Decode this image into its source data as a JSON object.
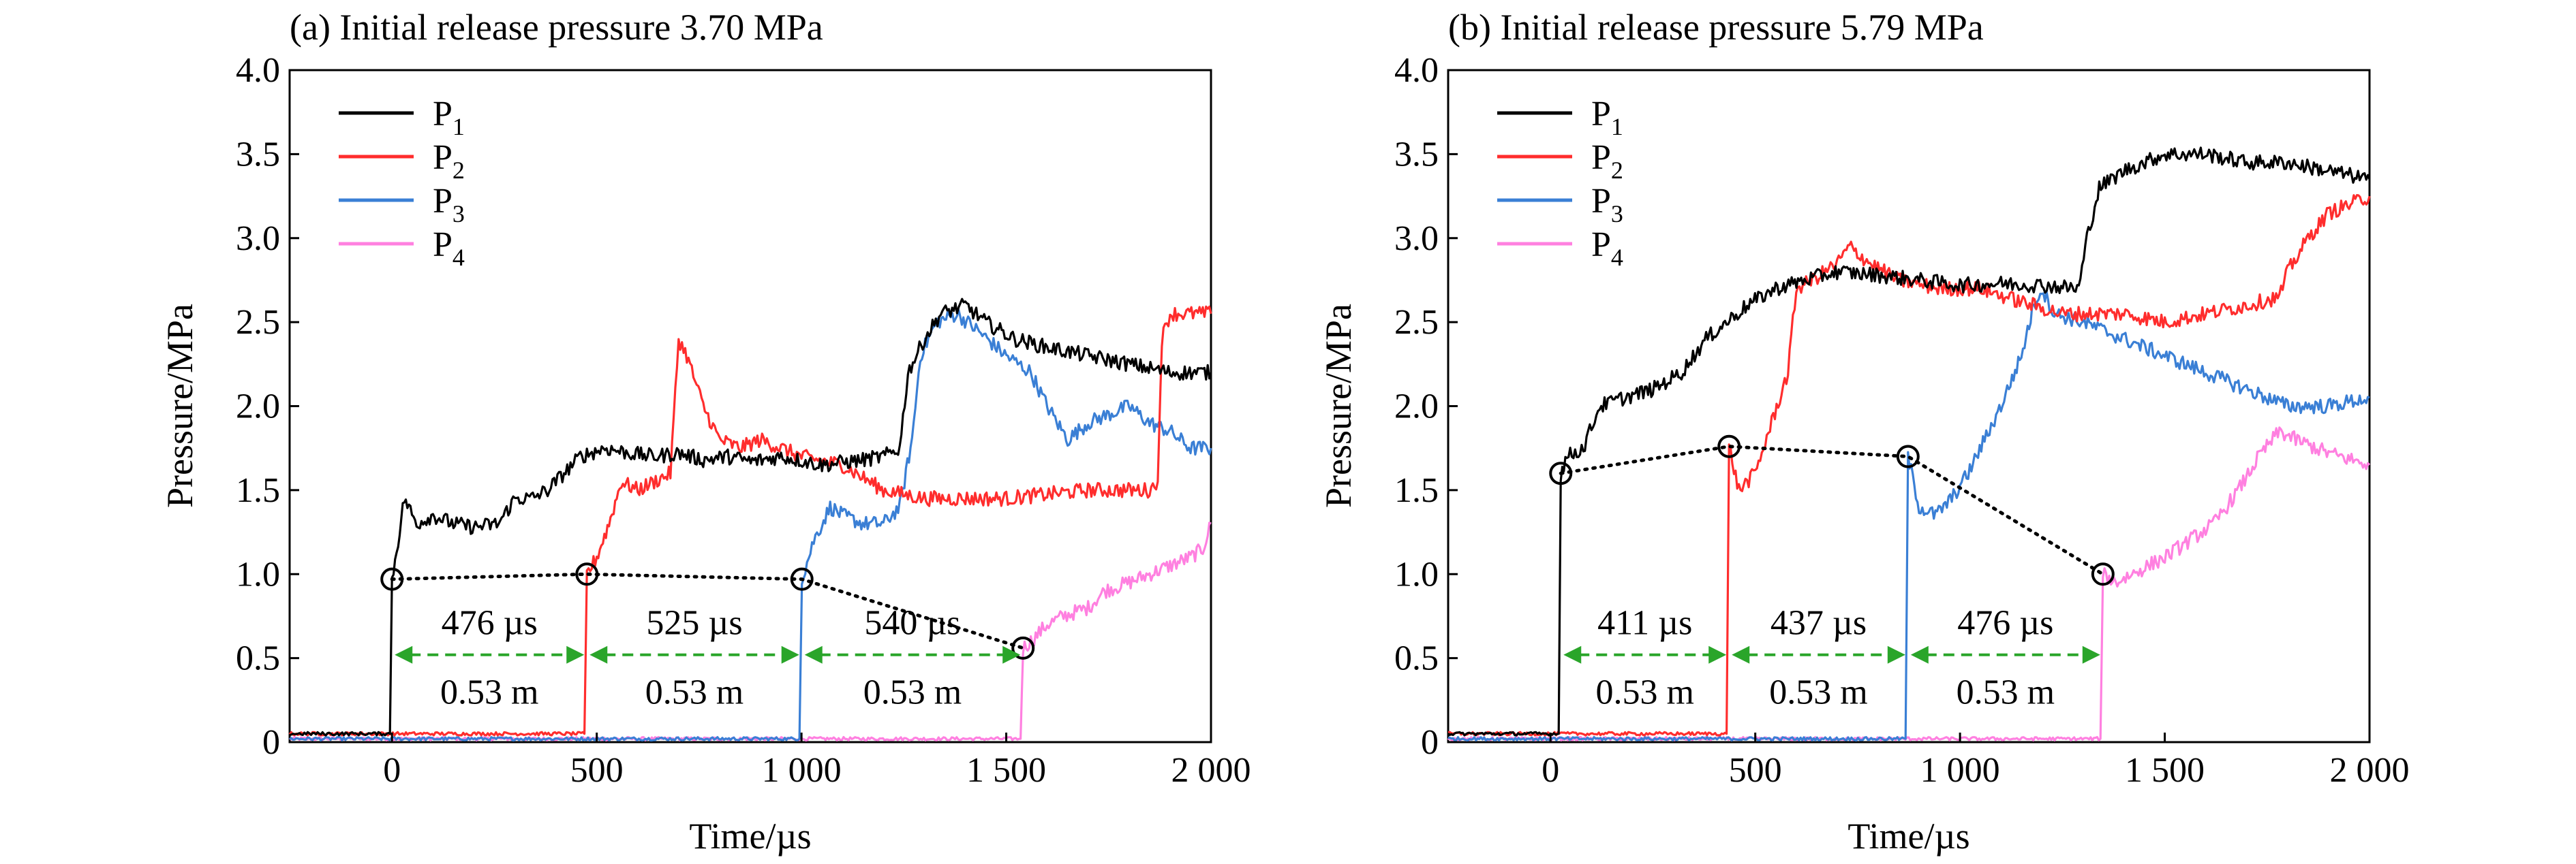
{
  "chart_data": [
    {
      "type": "line",
      "title": "(a) Initial release pressure 3.70 MPa",
      "xlabel": "Time/µs",
      "ylabel": "Pressure/MPa",
      "xlim": [
        -250,
        2000
      ],
      "ylim": [
        0,
        4.0
      ],
      "xticks": [
        0,
        500,
        1000,
        1500,
        2000
      ],
      "xtick_labels": [
        "0",
        "500",
        "1 000",
        "1 500",
        "2 000"
      ],
      "yticks": [
        0,
        0.5,
        1.0,
        1.5,
        2.0,
        2.5,
        3.0,
        3.5,
        4.0
      ],
      "ytick_labels": [
        "0",
        "0.5",
        "1.0",
        "1.5",
        "2.0",
        "2.5",
        "3.0",
        "3.5",
        "4.0"
      ],
      "grid": false,
      "legend_position": "top-left",
      "series": [
        {
          "name": "P",
          "sub": "1",
          "color": "#000000",
          "points": [
            [
              -250,
              0.05
            ],
            [
              -5,
              0.05
            ],
            [
              0,
              0.97
            ],
            [
              15,
              1.2
            ],
            [
              30,
              1.45
            ],
            [
              60,
              1.3
            ],
            [
              100,
              1.35
            ],
            [
              150,
              1.3
            ],
            [
              200,
              1.28
            ],
            [
              260,
              1.3
            ],
            [
              300,
              1.45
            ],
            [
              340,
              1.45
            ],
            [
              380,
              1.5
            ],
            [
              420,
              1.6
            ],
            [
              460,
              1.7
            ],
            [
              520,
              1.75
            ],
            [
              580,
              1.72
            ],
            [
              640,
              1.7
            ],
            [
              700,
              1.72
            ],
            [
              760,
              1.68
            ],
            [
              820,
              1.7
            ],
            [
              880,
              1.67
            ],
            [
              950,
              1.7
            ],
            [
              1050,
              1.65
            ],
            [
              1150,
              1.68
            ],
            [
              1200,
              1.7
            ],
            [
              1240,
              1.75
            ],
            [
              1260,
              2.2
            ],
            [
              1300,
              2.4
            ],
            [
              1340,
              2.55
            ],
            [
              1400,
              2.6
            ],
            [
              1450,
              2.5
            ],
            [
              1520,
              2.4
            ],
            [
              1600,
              2.35
            ],
            [
              1700,
              2.3
            ],
            [
              1800,
              2.25
            ],
            [
              1900,
              2.2
            ],
            [
              2000,
              2.2
            ]
          ]
        },
        {
          "name": "P",
          "sub": "2",
          "color": "#ff2d2d",
          "points": [
            [
              -250,
              0.05
            ],
            [
              470,
              0.05
            ],
            [
              476,
              1.0
            ],
            [
              500,
              1.1
            ],
            [
              530,
              1.3
            ],
            [
              560,
              1.55
            ],
            [
              600,
              1.5
            ],
            [
              640,
              1.55
            ],
            [
              680,
              1.6
            ],
            [
              700,
              2.4
            ],
            [
              720,
              2.3
            ],
            [
              760,
              2.0
            ],
            [
              800,
              1.8
            ],
            [
              850,
              1.75
            ],
            [
              900,
              1.8
            ],
            [
              950,
              1.75
            ],
            [
              1000,
              1.7
            ],
            [
              1100,
              1.65
            ],
            [
              1200,
              1.5
            ],
            [
              1300,
              1.45
            ],
            [
              1500,
              1.45
            ],
            [
              1700,
              1.5
            ],
            [
              1850,
              1.5
            ],
            [
              1870,
              1.55
            ],
            [
              1880,
              2.4
            ],
            [
              1900,
              2.55
            ],
            [
              2000,
              2.55
            ]
          ]
        },
        {
          "name": "P",
          "sub": "3",
          "color": "#3a7fd5",
          "points": [
            [
              -250,
              0.02
            ],
            [
              995,
              0.02
            ],
            [
              1001,
              0.97
            ],
            [
              1030,
              1.2
            ],
            [
              1070,
              1.4
            ],
            [
              1100,
              1.35
            ],
            [
              1150,
              1.3
            ],
            [
              1200,
              1.3
            ],
            [
              1240,
              1.4
            ],
            [
              1270,
              1.8
            ],
            [
              1290,
              2.3
            ],
            [
              1330,
              2.5
            ],
            [
              1380,
              2.55
            ],
            [
              1430,
              2.45
            ],
            [
              1500,
              2.3
            ],
            [
              1560,
              2.2
            ],
            [
              1600,
              2.0
            ],
            [
              1650,
              1.8
            ],
            [
              1700,
              1.9
            ],
            [
              1750,
              1.95
            ],
            [
              1800,
              2.0
            ],
            [
              1850,
              1.9
            ],
            [
              1900,
              1.85
            ],
            [
              1950,
              1.75
            ],
            [
              2000,
              1.75
            ]
          ]
        },
        {
          "name": "P",
          "sub": "4",
          "color": "#ff80e0",
          "points": [
            [
              -250,
              0.02
            ],
            [
              1535,
              0.02
            ],
            [
              1541,
              0.56
            ],
            [
              1560,
              0.6
            ],
            [
              1600,
              0.7
            ],
            [
              1640,
              0.75
            ],
            [
              1700,
              0.8
            ],
            [
              1740,
              0.9
            ],
            [
              1800,
              0.95
            ],
            [
              1850,
              1.0
            ],
            [
              1900,
              1.05
            ],
            [
              1950,
              1.1
            ],
            [
              1980,
              1.15
            ],
            [
              2000,
              1.3
            ]
          ]
        }
      ],
      "markers": [
        [
          0,
          0.97
        ],
        [
          476,
          1.0
        ],
        [
          1001,
          0.97
        ],
        [
          1541,
          0.56
        ]
      ],
      "annotations": [
        {
          "x1": 0,
          "x2": 476,
          "time": "476 µs",
          "dist": "0.53 m"
        },
        {
          "x1": 476,
          "x2": 1001,
          "time": "525 µs",
          "dist": "0.53 m"
        },
        {
          "x1": 1001,
          "x2": 1541,
          "time": "540 µs",
          "dist": "0.53 m"
        }
      ]
    },
    {
      "type": "line",
      "title": "(b) Initial release pressure 5.79 MPa",
      "xlabel": "Time/µs",
      "ylabel": "Pressure/MPa",
      "xlim": [
        -250,
        2000
      ],
      "ylim": [
        0,
        4.0
      ],
      "xticks": [
        0,
        500,
        1000,
        1500,
        2000
      ],
      "xtick_labels": [
        "0",
        "500",
        "1 000",
        "1 500",
        "2 000"
      ],
      "yticks": [
        0,
        0.5,
        1.0,
        1.5,
        2.0,
        2.5,
        3.0,
        3.5,
        4.0
      ],
      "ytick_labels": [
        "0",
        "0.5",
        "1.0",
        "1.5",
        "2.0",
        "2.5",
        "3.0",
        "3.5",
        "4.0"
      ],
      "grid": false,
      "legend_position": "top-left",
      "series": [
        {
          "name": "P",
          "sub": "1",
          "color": "#000000",
          "points": [
            [
              -250,
              0.05
            ],
            [
              20,
              0.05
            ],
            [
              25,
              1.6
            ],
            [
              40,
              1.7
            ],
            [
              80,
              1.75
            ],
            [
              120,
              2.0
            ],
            [
              180,
              2.05
            ],
            [
              250,
              2.1
            ],
            [
              320,
              2.2
            ],
            [
              380,
              2.4
            ],
            [
              430,
              2.5
            ],
            [
              480,
              2.6
            ],
            [
              550,
              2.7
            ],
            [
              620,
              2.75
            ],
            [
              700,
              2.8
            ],
            [
              800,
              2.78
            ],
            [
              900,
              2.75
            ],
            [
              1000,
              2.72
            ],
            [
              1100,
              2.73
            ],
            [
              1200,
              2.72
            ],
            [
              1290,
              2.7
            ],
            [
              1310,
              3.0
            ],
            [
              1340,
              3.3
            ],
            [
              1400,
              3.4
            ],
            [
              1500,
              3.5
            ],
            [
              1600,
              3.5
            ],
            [
              1700,
              3.45
            ],
            [
              1800,
              3.45
            ],
            [
              1900,
              3.4
            ],
            [
              2000,
              3.35
            ]
          ]
        },
        {
          "name": "P",
          "sub": "2",
          "color": "#ff2d2d",
          "points": [
            [
              -250,
              0.05
            ],
            [
              430,
              0.05
            ],
            [
              436,
              1.76
            ],
            [
              460,
              1.5
            ],
            [
              500,
              1.6
            ],
            [
              540,
              1.9
            ],
            [
              580,
              2.2
            ],
            [
              600,
              2.7
            ],
            [
              640,
              2.75
            ],
            [
              700,
              2.85
            ],
            [
              730,
              2.95
            ],
            [
              780,
              2.85
            ],
            [
              850,
              2.75
            ],
            [
              950,
              2.7
            ],
            [
              1050,
              2.7
            ],
            [
              1150,
              2.62
            ],
            [
              1250,
              2.55
            ],
            [
              1400,
              2.55
            ],
            [
              1500,
              2.5
            ],
            [
              1600,
              2.55
            ],
            [
              1700,
              2.6
            ],
            [
              1780,
              2.65
            ],
            [
              1800,
              2.8
            ],
            [
              1850,
              3.0
            ],
            [
              1900,
              3.15
            ],
            [
              1950,
              3.2
            ],
            [
              2000,
              3.25
            ]
          ]
        },
        {
          "name": "P",
          "sub": "3",
          "color": "#3a7fd5",
          "points": [
            [
              -250,
              0.02
            ],
            [
              867,
              0.02
            ],
            [
              873,
              1.7
            ],
            [
              900,
              1.4
            ],
            [
              940,
              1.35
            ],
            [
              980,
              1.45
            ],
            [
              1020,
              1.6
            ],
            [
              1060,
              1.8
            ],
            [
              1100,
              2.0
            ],
            [
              1150,
              2.3
            ],
            [
              1180,
              2.6
            ],
            [
              1200,
              2.7
            ],
            [
              1230,
              2.55
            ],
            [
              1300,
              2.5
            ],
            [
              1400,
              2.4
            ],
            [
              1500,
              2.3
            ],
            [
              1600,
              2.2
            ],
            [
              1700,
              2.1
            ],
            [
              1800,
              2.0
            ],
            [
              1900,
              2.0
            ],
            [
              2000,
              2.05
            ]
          ]
        },
        {
          "name": "P",
          "sub": "4",
          "color": "#ff80e0",
          "points": [
            [
              -250,
              0.02
            ],
            [
              1343,
              0.02
            ],
            [
              1349,
              1.0
            ],
            [
              1380,
              0.95
            ],
            [
              1420,
              1.0
            ],
            [
              1500,
              1.1
            ],
            [
              1560,
              1.2
            ],
            [
              1620,
              1.3
            ],
            [
              1680,
              1.5
            ],
            [
              1730,
              1.7
            ],
            [
              1780,
              1.85
            ],
            [
              1820,
              1.8
            ],
            [
              1900,
              1.72
            ],
            [
              2000,
              1.65
            ]
          ]
        }
      ],
      "markers": [
        [
          25,
          1.6
        ],
        [
          436,
          1.76
        ],
        [
          873,
          1.7
        ],
        [
          1349,
          1.0
        ]
      ],
      "annotations": [
        {
          "x1": 25,
          "x2": 436,
          "time": "411 µs",
          "dist": "0.53 m"
        },
        {
          "x1": 436,
          "x2": 873,
          "time": "437 µs",
          "dist": "0.53 m"
        },
        {
          "x1": 873,
          "x2": 1349,
          "time": "476 µs",
          "dist": "0.53 m"
        }
      ]
    }
  ]
}
